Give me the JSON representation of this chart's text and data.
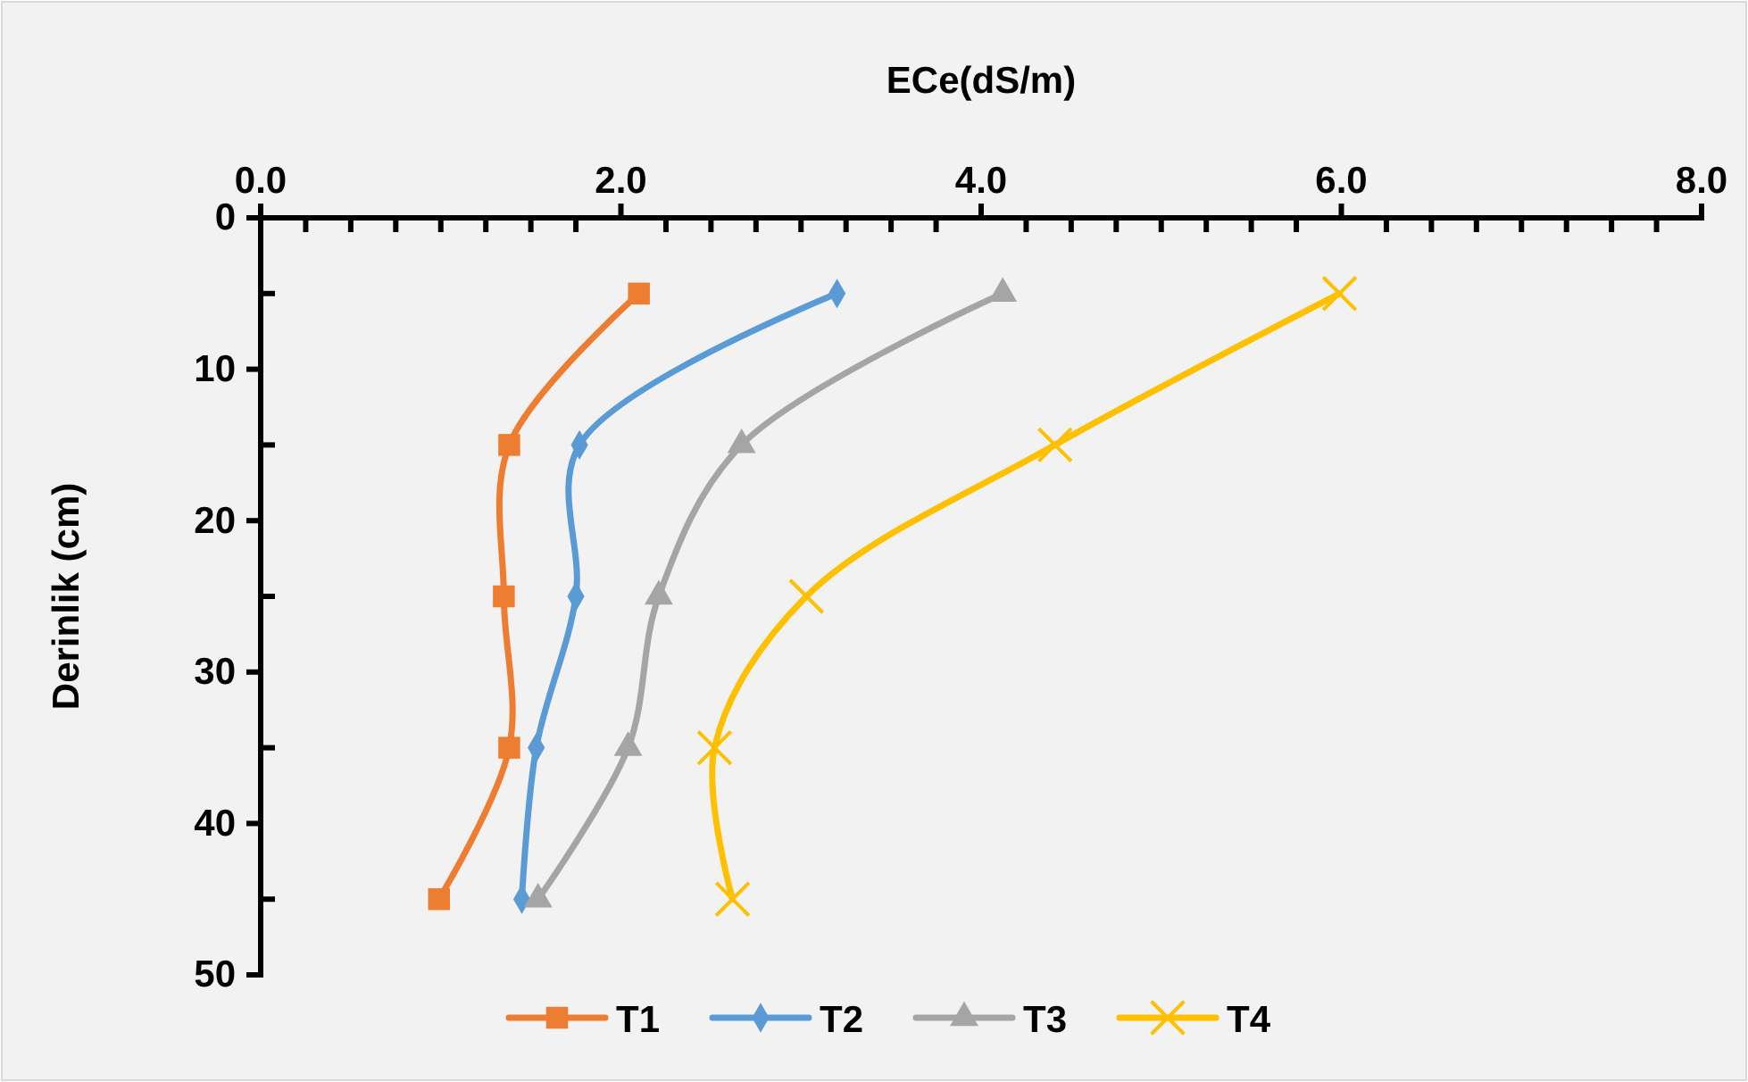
{
  "chart_data": {
    "type": "line",
    "xlabel": "ECe(dS/m)",
    "ylabel": "Derinlik (cm)",
    "xlim": [
      0,
      8
    ],
    "xticks": [
      {
        "value": 0,
        "label": "0.0"
      },
      {
        "value": 0.25,
        "label": null
      },
      {
        "value": 0.5,
        "label": null
      },
      {
        "value": 0.75,
        "label": null
      },
      {
        "value": 1,
        "label": null
      },
      {
        "value": 1.25,
        "label": null
      },
      {
        "value": 1.5,
        "label": null
      },
      {
        "value": 1.75,
        "label": null
      },
      {
        "value": 2,
        "label": "2.0"
      },
      {
        "value": 2.25,
        "label": null
      },
      {
        "value": 2.5,
        "label": null
      },
      {
        "value": 2.75,
        "label": null
      },
      {
        "value": 3,
        "label": null
      },
      {
        "value": 3.25,
        "label": null
      },
      {
        "value": 3.5,
        "label": null
      },
      {
        "value": 3.75,
        "label": null
      },
      {
        "value": 4,
        "label": "4.0"
      },
      {
        "value": 4.25,
        "label": null
      },
      {
        "value": 4.5,
        "label": null
      },
      {
        "value": 4.75,
        "label": null
      },
      {
        "value": 5,
        "label": null
      },
      {
        "value": 5.25,
        "label": null
      },
      {
        "value": 5.5,
        "label": null
      },
      {
        "value": 5.75,
        "label": null
      },
      {
        "value": 6,
        "label": "6.0"
      },
      {
        "value": 6.25,
        "label": null
      },
      {
        "value": 6.5,
        "label": null
      },
      {
        "value": 6.75,
        "label": null
      },
      {
        "value": 7,
        "label": null
      },
      {
        "value": 7.25,
        "label": null
      },
      {
        "value": 7.5,
        "label": null
      },
      {
        "value": 7.75,
        "label": null
      },
      {
        "value": 8,
        "label": "8.0"
      }
    ],
    "ylim": [
      50,
      0
    ],
    "yticks": [
      0,
      {
        "value": 5,
        "label": null
      },
      10,
      {
        "value": 15,
        "label": null
      },
      20,
      {
        "value": 25,
        "label": null
      },
      30,
      {
        "value": 35,
        "label": null
      },
      40,
      {
        "value": 45,
        "label": null
      },
      50
    ],
    "grid": false,
    "legend": "bottom",
    "line_style": "solid",
    "series": [
      {
        "name": "T1",
        "color": "#ed7d31",
        "marker": "square",
        "x": [
          2.1,
          1.38,
          1.35,
          1.38,
          0.99
        ],
        "values": [
          5,
          15,
          25,
          35,
          45
        ]
      },
      {
        "name": "T2",
        "color": "#5b9bd5",
        "marker": "diamond",
        "x": [
          3.2,
          1.77,
          1.75,
          1.53,
          1.45
        ],
        "values": [
          5,
          15,
          25,
          35,
          45
        ]
      },
      {
        "name": "T3",
        "color": "#a5a5a5",
        "marker": "triangle",
        "x": [
          4.12,
          2.67,
          2.21,
          2.04,
          1.54
        ],
        "values": [
          5,
          15,
          25,
          35,
          45
        ]
      },
      {
        "name": "T4",
        "color": "#ffc000",
        "marker": "cross",
        "x": [
          5.99,
          4.41,
          3.03,
          2.52,
          2.62
        ],
        "values": [
          5,
          15,
          25,
          35,
          45
        ]
      }
    ]
  }
}
